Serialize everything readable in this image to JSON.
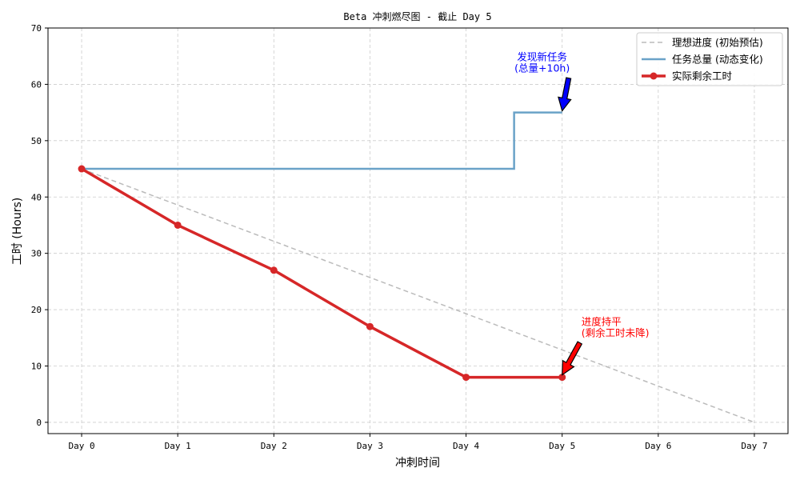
{
  "chart_data": {
    "type": "line",
    "title": "Beta 冲刺燃尽图 - 截止 Day 5",
    "xlabel": "冲刺时间",
    "ylabel": "工时 (Hours)",
    "categories": [
      "Day 0",
      "Day 1",
      "Day 2",
      "Day 3",
      "Day 4",
      "Day 5",
      "Day 6",
      "Day 7"
    ],
    "xlim": [
      -0.35,
      7.35
    ],
    "ylim": [
      -2,
      70
    ],
    "yticks": [
      0,
      10,
      20,
      30,
      40,
      50,
      60,
      70
    ],
    "grid": true,
    "legend_position": "top-right",
    "series": [
      {
        "name": "理想进度 (初始预估)",
        "style": "dashed",
        "color": "#bbbbbb",
        "points": [
          [
            0,
            45
          ],
          [
            7,
            0
          ]
        ]
      },
      {
        "name": "任务总量 (动态变化)",
        "style": "step",
        "color": "#6aa2c8",
        "points": [
          [
            0,
            45
          ],
          [
            4.5,
            45
          ],
          [
            4.5,
            55
          ],
          [
            5,
            55
          ]
        ]
      },
      {
        "name": "实际剩余工时",
        "style": "line-marker",
        "color": "#d62728",
        "points": [
          [
            0,
            45
          ],
          [
            1,
            35
          ],
          [
            2,
            27
          ],
          [
            3,
            17
          ],
          [
            4,
            8
          ],
          [
            5,
            8
          ]
        ]
      }
    ],
    "annotations": [
      {
        "lines": [
          "发现新任务",
          "(总量+10h)"
        ],
        "color": "#0000ff",
        "point": [
          5,
          55
        ]
      },
      {
        "lines": [
          "进度持平",
          "(剩余工时未降)"
        ],
        "color": "#ff0000",
        "point": [
          5,
          8
        ]
      }
    ]
  }
}
